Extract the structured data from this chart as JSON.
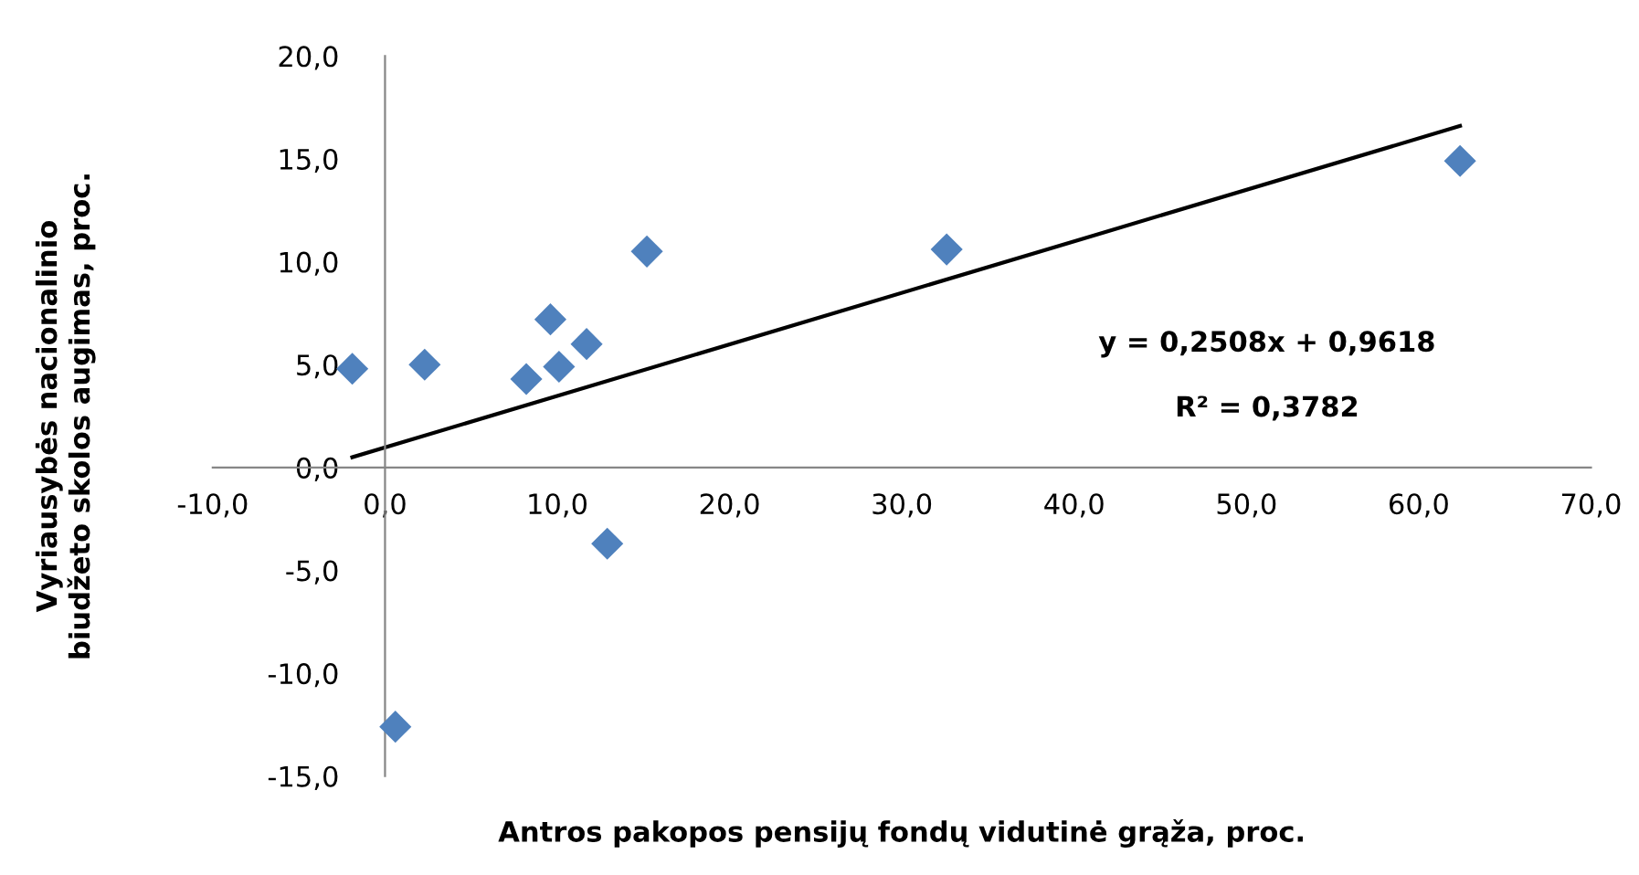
{
  "chart_data": {
    "type": "scatter",
    "xlabel": "Antros pakopos pensijų fondų vidutinė grąža, proc.",
    "ylabel": "Vyriausybės nacionalinio\nbiudžeto skolos augimas, proc.",
    "series": [
      {
        "type": "scatter",
        "color": "#4f81bd",
        "marker": "diamond",
        "x": [
          -1.9,
          2.3,
          8.2,
          9.6,
          10.1,
          11.7,
          15.2,
          12.9,
          0.6,
          32.6,
          62.4
        ],
        "values": [
          4.8,
          5.0,
          4.3,
          7.2,
          4.9,
          6.0,
          10.5,
          -3.7,
          -12.6,
          10.6,
          14.9
        ]
      },
      {
        "type": "line",
        "color": "#000000",
        "marker": "none",
        "x": [
          -1.9,
          62.4
        ],
        "values": [
          0.5,
          16.6
        ]
      }
    ],
    "annotations": [
      "y = 0,2508x + 0,9618",
      "R² = 0,3782"
    ],
    "xlim": [
      -10,
      70
    ],
    "ylim": [
      -15,
      20
    ],
    "xticks": [
      {
        "value": -10,
        "label": "-10,0"
      },
      {
        "value": 0,
        "label": "0,0"
      },
      {
        "value": 10,
        "label": "10,0"
      },
      {
        "value": 20,
        "label": "20,0"
      },
      {
        "value": 30,
        "label": "30,0"
      },
      {
        "value": 40,
        "label": "40,0"
      },
      {
        "value": 50,
        "label": "50,0"
      },
      {
        "value": 60,
        "label": "60,0"
      },
      {
        "value": 70,
        "label": "70,0"
      }
    ],
    "yticks": [
      {
        "value": -15,
        "label": "-15,0"
      },
      {
        "value": -10,
        "label": "-10,0"
      },
      {
        "value": -5,
        "label": "-5,0"
      },
      {
        "value": 0,
        "label": "0,0"
      },
      {
        "value": 5,
        "label": "5,0"
      },
      {
        "value": 10,
        "label": "10,0"
      },
      {
        "value": 15,
        "label": "15,0"
      },
      {
        "value": 20,
        "label": "20,0"
      }
    ],
    "grid": false,
    "legend": false
  }
}
